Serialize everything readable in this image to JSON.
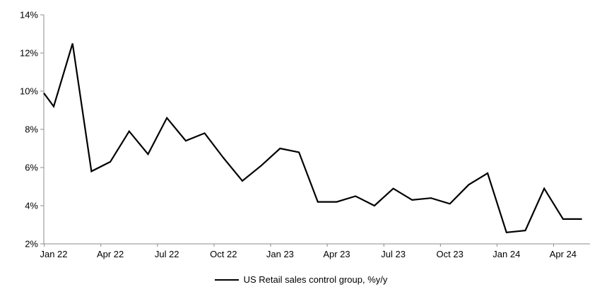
{
  "chart_data": {
    "type": "line",
    "title": "",
    "xlabel": "",
    "ylabel": "",
    "legend": "US Retail sales control group, %y/y",
    "legend_position": "bottom-center",
    "background": "#ffffff",
    "grid": false,
    "line_color": "#000000",
    "axis_color": "#8c8c8c",
    "ylim": [
      2,
      14
    ],
    "ytick_labels": [
      "2%",
      "4%",
      "6%",
      "8%",
      "10%",
      "12%",
      "14%"
    ],
    "ytick_values": [
      2,
      4,
      6,
      8,
      10,
      12,
      14
    ],
    "xtick_labels": [
      "Jan 22",
      "Apr 22",
      "Jul 22",
      "Oct 22",
      "Jan 23",
      "Apr 23",
      "Jul 23",
      "Oct 23",
      "Jan 24",
      "Apr 24"
    ],
    "axis_intercept_value": 9.9,
    "series": [
      {
        "name": "US Retail sales control group, %y/y",
        "color": "#000000",
        "x": [
          "Jan 22",
          "Feb 22",
          "Mar 22",
          "Apr 22",
          "May 22",
          "Jun 22",
          "Jul 22",
          "Aug 22",
          "Sep 22",
          "Oct 22",
          "Nov 22",
          "Dec 22",
          "Jan 23",
          "Feb 23",
          "Mar 23",
          "Apr 23",
          "May 23",
          "Jun 23",
          "Jul 23",
          "Aug 23",
          "Sep 23",
          "Oct 23",
          "Nov 23",
          "Dec 23",
          "Jan 24",
          "Feb 24",
          "Mar 24",
          "Apr 24",
          "May 24"
        ],
        "values": [
          9.2,
          12.5,
          5.8,
          6.3,
          7.9,
          6.7,
          8.6,
          7.4,
          7.8,
          6.5,
          5.3,
          6.1,
          7.0,
          6.8,
          4.2,
          4.2,
          4.5,
          4.0,
          4.9,
          4.3,
          4.4,
          4.1,
          5.1,
          5.7,
          2.6,
          2.7,
          4.9,
          3.3,
          3.3
        ]
      }
    ]
  }
}
